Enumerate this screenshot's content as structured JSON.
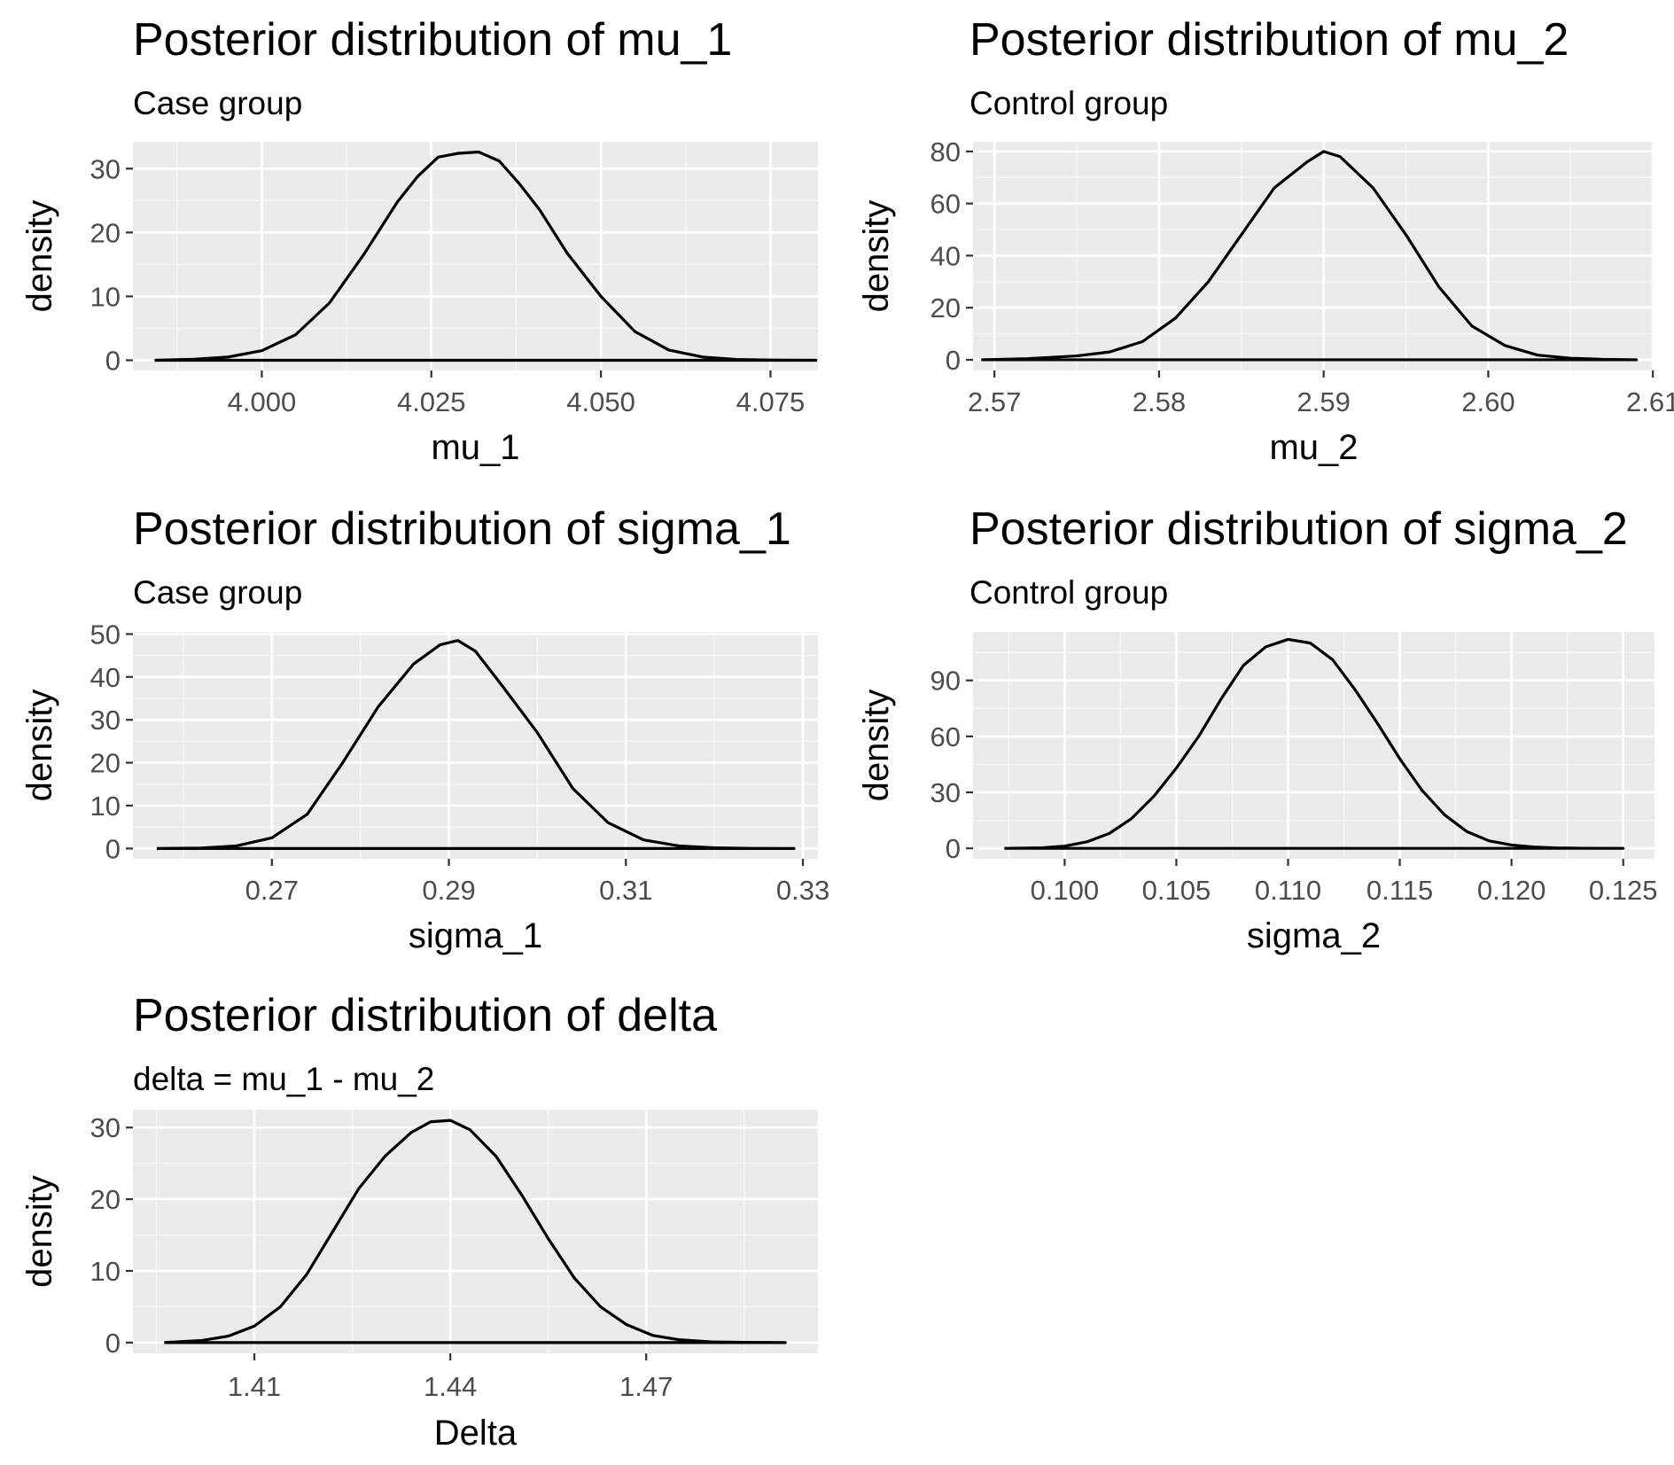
{
  "colors": {
    "panel_background": "#ebebeb",
    "major_grid": "#ffffff",
    "minor_grid": "#f7f7f7",
    "density_line": "#000000",
    "tick_label": "#4d4d4d",
    "tick_mark": "#333333"
  },
  "chart_data": [
    {
      "type": "area",
      "title": "Posterior distribution of mu_1",
      "subtitle": "Case group",
      "xlabel": "mu_1",
      "ylabel": "density",
      "xlim": [
        3.981,
        4.082
      ],
      "ylim": [
        -1.6,
        34.2
      ],
      "xticks": [
        4.0,
        4.025,
        4.05,
        4.075
      ],
      "xtick_labels": [
        "4.000",
        "4.025",
        "4.050",
        "4.075"
      ],
      "yticks": [
        0,
        10,
        20,
        30
      ],
      "ytick_labels": [
        "0",
        "10",
        "20",
        "30"
      ],
      "grid": true,
      "series": [
        {
          "x": [
            3.9842,
            3.99,
            3.995,
            4.0,
            4.005,
            4.01,
            4.015,
            4.02,
            4.023,
            4.026,
            4.029,
            4.032,
            4.035,
            4.038,
            4.041,
            4.045,
            4.05,
            4.055,
            4.06,
            4.065,
            4.07,
            4.075,
            4.0817
          ],
          "y": [
            0.0,
            0.15,
            0.5,
            1.5,
            4.0,
            9.0,
            16.5,
            24.8,
            28.8,
            31.8,
            32.4,
            32.6,
            31.2,
            27.6,
            23.5,
            16.8,
            10.0,
            4.5,
            1.6,
            0.5,
            0.12,
            0.03,
            0.0
          ]
        }
      ]
    },
    {
      "type": "area",
      "title": "Posterior distribution of mu_2",
      "subtitle": "Control group",
      "xlabel": "mu_2",
      "ylabel": "density",
      "xlim": [
        3.5678,
        2.6111
      ],
      "ylim": [
        -4.1,
        83.7
      ],
      "xticks": [
        2.57,
        2.58,
        2.59,
        2.6,
        2.61
      ],
      "xtick_labels": [
        "2.57",
        "2.58",
        "2.59",
        "2.60",
        "2.61"
      ],
      "yticks": [
        0,
        20,
        40,
        60,
        80
      ],
      "ytick_labels": [
        "0",
        "20",
        "40",
        "60",
        "80"
      ],
      "grid": true,
      "series": [
        {
          "x": [
            2.5692,
            2.572,
            2.575,
            2.577,
            2.579,
            2.581,
            2.583,
            2.585,
            2.587,
            2.589,
            2.59,
            2.591,
            2.593,
            2.595,
            2.597,
            2.599,
            2.601,
            2.603,
            2.605,
            2.607,
            2.609
          ],
          "y": [
            0.0,
            0.4,
            1.5,
            3.0,
            7.0,
            16.0,
            30.0,
            48.0,
            66.0,
            76.0,
            80.0,
            78.0,
            66.0,
            48.0,
            28.0,
            13.0,
            5.5,
            1.8,
            0.6,
            0.15,
            0.0
          ]
        }
      ]
    },
    {
      "type": "area",
      "title": "Posterior distribution of sigma_1",
      "subtitle": "Case group",
      "xlabel": "sigma_1",
      "ylabel": "density",
      "xlim": [
        0.2543,
        0.3317
      ],
      "ylim": [
        -2.4,
        50.5
      ],
      "xticks": [
        0.27,
        0.29,
        0.31,
        0.33
      ],
      "xtick_labels": [
        "0.27",
        "0.29",
        "0.31",
        "0.33"
      ],
      "yticks": [
        0,
        10,
        20,
        30,
        40,
        50
      ],
      "ytick_labels": [
        "0",
        "10",
        "20",
        "30",
        "40",
        "50"
      ],
      "grid": true,
      "series": [
        {
          "x": [
            0.257,
            0.262,
            0.266,
            0.27,
            0.274,
            0.278,
            0.282,
            0.286,
            0.289,
            0.291,
            0.293,
            0.296,
            0.3,
            0.304,
            0.308,
            0.312,
            0.316,
            0.32,
            0.324,
            0.329
          ],
          "y": [
            0.0,
            0.1,
            0.6,
            2.5,
            8.0,
            20.0,
            33.0,
            43.0,
            47.5,
            48.5,
            46.0,
            38.0,
            27.0,
            14.0,
            6.0,
            2.0,
            0.6,
            0.15,
            0.03,
            0.0
          ]
        }
      ]
    },
    {
      "type": "area",
      "title": "Posterior distribution of sigma_2",
      "subtitle": "Control group",
      "xlabel": "sigma_2",
      "ylabel": "density",
      "xlim": [
        0.0959,
        0.1264
      ],
      "ylim": [
        -5.6,
        116
      ],
      "xticks": [
        0.1,
        0.105,
        0.11,
        0.115,
        0.12,
        0.125
      ],
      "xtick_labels": [
        "0.100",
        "0.105",
        "0.110",
        "0.115",
        "0.120",
        "0.125"
      ],
      "yticks": [
        0,
        30,
        60,
        90
      ],
      "ytick_labels": [
        "0",
        "30",
        "60",
        "90"
      ],
      "grid": true,
      "series": [
        {
          "x": [
            0.0973,
            0.099,
            0.1,
            0.101,
            0.102,
            0.103,
            0.104,
            0.105,
            0.106,
            0.107,
            0.108,
            0.109,
            0.11,
            0.111,
            0.112,
            0.113,
            0.114,
            0.115,
            0.116,
            0.117,
            0.118,
            0.119,
            0.12,
            0.121,
            0.122,
            0.123,
            0.125
          ],
          "y": [
            0.0,
            0.3,
            1.2,
            3.5,
            8.0,
            16.0,
            28.0,
            43.0,
            60.0,
            80.0,
            98.0,
            108.0,
            112.0,
            110.0,
            101.0,
            85.0,
            67.0,
            48.0,
            31.0,
            18.0,
            9.0,
            4.0,
            1.8,
            0.7,
            0.25,
            0.08,
            0.0
          ]
        }
      ]
    },
    {
      "type": "area",
      "title": "Posterior distribution of delta",
      "subtitle": "delta = mu_1 - mu_2",
      "xlabel": "Delta",
      "ylabel": "density",
      "xlim": [
        1.3914,
        1.4963
      ],
      "ylim": [
        -1.5,
        32.5
      ],
      "xticks": [
        1.41,
        1.44,
        1.47
      ],
      "xtick_labels": [
        "1.41",
        "1.44",
        "1.47"
      ],
      "yticks": [
        0,
        10,
        20,
        30
      ],
      "ytick_labels": [
        "0",
        "10",
        "20",
        "30"
      ],
      "grid": true,
      "series": [
        {
          "x": [
            1.3962,
            1.402,
            1.406,
            1.41,
            1.414,
            1.418,
            1.422,
            1.426,
            1.43,
            1.434,
            1.437,
            1.44,
            1.443,
            1.447,
            1.451,
            1.455,
            1.459,
            1.463,
            1.467,
            1.471,
            1.475,
            1.48,
            1.485,
            1.4913
          ],
          "y": [
            0.0,
            0.3,
            0.9,
            2.3,
            5.0,
            9.5,
            15.5,
            21.5,
            26.0,
            29.3,
            30.8,
            31.0,
            29.7,
            26.0,
            20.5,
            14.5,
            9.0,
            5.0,
            2.5,
            1.0,
            0.4,
            0.1,
            0.03,
            0.0
          ]
        }
      ]
    }
  ]
}
